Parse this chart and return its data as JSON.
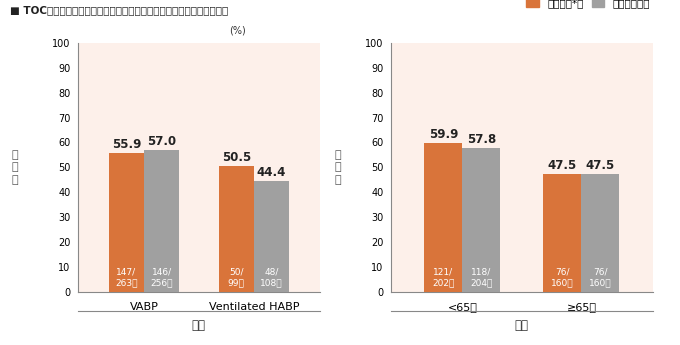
{
  "title": "■ TOC時点の臨床効果（主要評価項目：層別因子別サブグループ解析）",
  "chart1": {
    "groups": [
      "VABP",
      "Ventilated HABP"
    ],
    "group_label": "診断",
    "values_orange": [
      55.9,
      50.5
    ],
    "values_gray": [
      57.0,
      44.4
    ],
    "labels_orange": [
      "147/\n263例",
      "50/\n99例"
    ],
    "labels_gray": [
      "146/\n256例",
      "48/\n108例"
    ],
    "ylabel": "有\n効\n率"
  },
  "chart2": {
    "groups": [
      "<65歳",
      "≥65歳"
    ],
    "group_label": "年齢",
    "values_orange": [
      59.9,
      47.5
    ],
    "values_gray": [
      57.8,
      47.5
    ],
    "labels_orange": [
      "121/\n202例",
      "76/\n160例"
    ],
    "labels_gray": [
      "118/\n204例",
      "76/\n160例"
    ],
    "ylabel": "有\n効\n率"
  },
  "legend_orange": "ザバクサ*群",
  "legend_gray": "メロペネム群",
  "color_orange": "#d9743a",
  "color_gray": "#a0a0a0",
  "bg_color": "#fdf0ea",
  "ylim": [
    0,
    100
  ],
  "yticks": [
    0,
    10,
    20,
    30,
    40,
    50,
    60,
    70,
    80,
    90,
    100
  ],
  "bar_width": 0.32,
  "pct_label": "(%)"
}
